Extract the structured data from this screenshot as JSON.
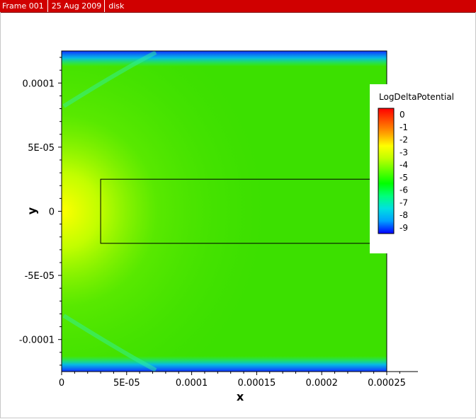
{
  "header": {
    "frame": "Frame 001",
    "date": "25 Aug 2009",
    "dataset": "disk"
  },
  "colors": {
    "header_bg": "#d00000",
    "colormap": [
      "#0000ff",
      "#00a0ff",
      "#00e0e0",
      "#00ff7a",
      "#00ff00",
      "#60ff00",
      "#c0ff00",
      "#ffff00",
      "#ffa000",
      "#ff5000",
      "#ff0000"
    ]
  },
  "chart_data": {
    "type": "heatmap",
    "title": "",
    "xlabel": "x",
    "ylabel": "y",
    "xlim": [
      0,
      0.00025
    ],
    "ylim": [
      -0.000125,
      0.000125
    ],
    "x_ticks": [
      {
        "value": 0,
        "label": "0"
      },
      {
        "value": 5e-05,
        "label": "5E-05"
      },
      {
        "value": 0.0001,
        "label": "0.0001"
      },
      {
        "value": 0.00015,
        "label": "0.00015"
      },
      {
        "value": 0.0002,
        "label": "0.0002"
      },
      {
        "value": 0.00025,
        "label": "0.00025"
      }
    ],
    "y_ticks": [
      {
        "value": 0.0001,
        "label": "0.0001"
      },
      {
        "value": 5e-05,
        "label": "5E-05"
      },
      {
        "value": 0,
        "label": "0"
      },
      {
        "value": -5e-05,
        "label": "-5E-05"
      },
      {
        "value": -0.0001,
        "label": "-0.0001"
      }
    ],
    "colorbar": {
      "title": "LogDeltaPotential",
      "min": -9,
      "max": 0,
      "levels": [
        "0",
        "-1",
        "-2",
        "-3",
        "-4",
        "-5",
        "-6",
        "-7",
        "-8",
        "-9"
      ],
      "placement": "right"
    },
    "field": {
      "peak_value": -2,
      "peak_location": [
        0,
        0
      ],
      "background_value": -4.5,
      "boundary_value": -8.5,
      "boundaries": [
        "top",
        "bottom"
      ]
    },
    "outline_rectangle": {
      "x_range": [
        3e-05,
        0.00025
      ],
      "y_range": [
        -2.5e-05,
        2.5e-05
      ]
    }
  }
}
